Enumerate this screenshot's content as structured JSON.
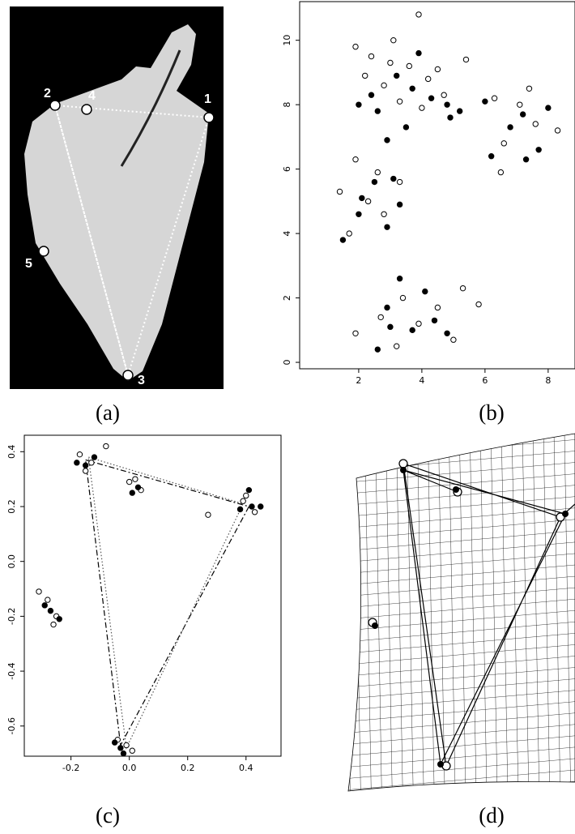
{
  "panels": {
    "a": {
      "label": "(a)",
      "landmarks": [
        "1",
        "2",
        "3",
        "4",
        "5"
      ]
    },
    "b": {
      "label": "(b)"
    },
    "c": {
      "label": "(c)"
    },
    "d": {
      "label": "(d)"
    }
  },
  "chart_data": [
    {
      "type": "scatter",
      "xlim": [
        0.13,
        8.85
      ],
      "ylim": [
        -0.2,
        11.2
      ],
      "xticks": [
        2,
        4,
        6,
        8
      ],
      "yticks": [
        0,
        2,
        4,
        6,
        8,
        10
      ],
      "series": [
        {
          "color": "#000000",
          "marker": "open",
          "x": [
            1.9,
            2.4,
            3.1,
            3.9,
            3.6,
            4.2,
            2.8,
            3.3,
            4.7,
            5.4,
            2.2,
            4.0,
            4.5,
            3.0,
            6.3,
            7.1,
            7.6,
            6.6,
            8.3,
            7.4,
            6.5,
            1.4,
            1.9,
            2.3,
            2.8,
            1.7,
            3.3,
            2.6,
            1.9,
            2.7,
            3.4,
            3.9,
            4.5,
            5.0,
            5.3,
            5.8,
            3.2
          ],
          "y": [
            9.8,
            9.5,
            10.0,
            10.8,
            9.2,
            8.8,
            8.6,
            8.1,
            8.3,
            9.4,
            8.9,
            7.9,
            9.1,
            9.3,
            8.2,
            8.0,
            7.4,
            6.8,
            7.2,
            8.5,
            5.9,
            5.3,
            6.3,
            5.0,
            4.6,
            4.0,
            5.6,
            5.9,
            0.9,
            1.4,
            2.0,
            1.2,
            1.7,
            0.7,
            2.3,
            1.8,
            0.5
          ]
        },
        {
          "color": "#000000",
          "marker": "filled",
          "x": [
            2.0,
            2.6,
            3.2,
            3.7,
            4.3,
            4.9,
            2.9,
            3.5,
            4.8,
            5.2,
            2.4,
            3.9,
            6.0,
            6.8,
            7.2,
            7.7,
            7.3,
            6.2,
            8.0,
            1.5,
            2.1,
            2.5,
            2.9,
            3.1,
            2.0,
            3.3,
            2.6,
            2.9,
            3.3,
            3.7,
            4.1,
            4.4,
            4.8,
            3.0
          ],
          "y": [
            8.0,
            7.8,
            8.9,
            8.5,
            8.2,
            7.6,
            6.9,
            7.3,
            8.0,
            7.8,
            8.3,
            9.6,
            8.1,
            7.3,
            7.7,
            6.6,
            6.3,
            6.4,
            7.9,
            3.8,
            5.1,
            5.6,
            4.2,
            5.7,
            4.6,
            4.9,
            0.4,
            1.7,
            2.6,
            1.0,
            2.2,
            1.3,
            0.9,
            1.1
          ]
        }
      ]
    },
    {
      "type": "scatter",
      "xlim": [
        -0.36,
        0.52
      ],
      "ylim": [
        -0.71,
        0.46
      ],
      "xticks": [
        -0.2,
        {
          "value": 0,
          "label": "0.0"
        },
        0.2,
        0.4
      ],
      "yticks": [
        -0.6,
        -0.4,
        -0.2,
        {
          "value": 0,
          "label": "0.0"
        },
        0.2,
        0.4
      ],
      "series": [
        {
          "color": "#000000",
          "marker": "line",
          "style": "dashed",
          "x": [
            -0.15,
            0.41,
            -0.03,
            -0.15
          ],
          "y": [
            0.37,
            0.2,
            -0.67,
            0.37
          ]
        },
        {
          "color": "#555555",
          "marker": "line",
          "style": "dotted",
          "x": [
            -0.14,
            0.39,
            -0.01,
            -0.14
          ],
          "y": [
            0.38,
            0.21,
            -0.68,
            0.38
          ]
        },
        {
          "color": "#000000",
          "marker": "open",
          "x": [
            -0.17,
            -0.13,
            -0.15,
            0.0,
            0.04,
            0.02,
            0.39,
            0.43,
            0.27,
            0.4,
            -0.28,
            -0.25,
            -0.31,
            -0.26,
            -0.04,
            0.01,
            -0.01,
            -0.08
          ],
          "y": [
            0.39,
            0.36,
            0.33,
            0.29,
            0.26,
            0.3,
            0.22,
            0.18,
            0.17,
            0.24,
            -0.14,
            -0.2,
            -0.11,
            -0.23,
            -0.65,
            -0.69,
            -0.67,
            0.42
          ]
        },
        {
          "color": "#000000",
          "marker": "filled",
          "x": [
            -0.15,
            -0.18,
            -0.12,
            0.03,
            0.01,
            0.42,
            0.45,
            0.38,
            0.41,
            -0.27,
            -0.29,
            -0.24,
            -0.03,
            -0.05,
            -0.02
          ],
          "y": [
            0.35,
            0.36,
            0.38,
            0.27,
            0.25,
            0.2,
            0.2,
            0.19,
            0.26,
            -0.18,
            -0.16,
            -0.21,
            -0.68,
            -0.66,
            -0.7
          ]
        }
      ]
    }
  ]
}
